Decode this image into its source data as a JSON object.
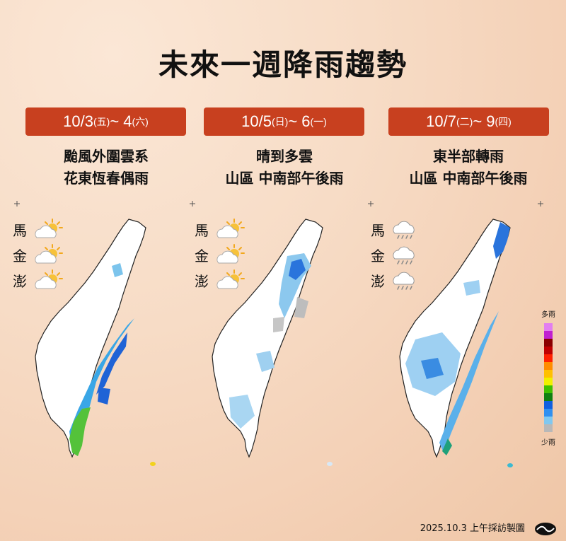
{
  "title": "未來一週降雨趨勢",
  "panels": [
    {
      "date_main": "10/3",
      "date_day1": "(五)",
      "date_sep": " ~ 4",
      "date_day2": "(六)",
      "desc_line1": "颱風外圍雲系",
      "desc_line2": "花東恆春偶雨",
      "islands": [
        {
          "name": "馬",
          "icon": "partly-sunny-icon"
        },
        {
          "name": "金",
          "icon": "partly-sunny-icon"
        },
        {
          "name": "澎",
          "icon": "partly-sunny-icon"
        }
      ]
    },
    {
      "date_main": "10/5",
      "date_day1": "(日)",
      "date_sep": " ~ 6",
      "date_day2": "(一)",
      "desc_line1": "晴到多雲",
      "desc_line2": "山區 中南部午後雨",
      "islands": [
        {
          "name": "馬",
          "icon": "partly-sunny-icon"
        },
        {
          "name": "金",
          "icon": "partly-sunny-icon"
        },
        {
          "name": "澎",
          "icon": "partly-sunny-icon"
        }
      ]
    },
    {
      "date_main": "10/7",
      "date_day1": "(二)",
      "date_sep": " ~ 9",
      "date_day2": "(四)",
      "desc_line1": "東半部轉雨",
      "desc_line2": "山區 中南部午後雨",
      "islands": [
        {
          "name": "馬",
          "icon": "rain-cloud-icon"
        },
        {
          "name": "金",
          "icon": "rain-cloud-icon"
        },
        {
          "name": "澎",
          "icon": "rain-cloud-icon"
        }
      ]
    }
  ],
  "legend": {
    "top_label": "多雨",
    "bottom_label": "少雨",
    "colors": [
      "#e27ef0",
      "#c020d0",
      "#8a0000",
      "#c00000",
      "#ff2000",
      "#ff8c00",
      "#ffc000",
      "#f0f000",
      "#40c000",
      "#108010",
      "#1060e0",
      "#3090f0",
      "#80c8f0",
      "#b8b8b8"
    ]
  },
  "footer": "2025.10.3  上午採訪製圖"
}
